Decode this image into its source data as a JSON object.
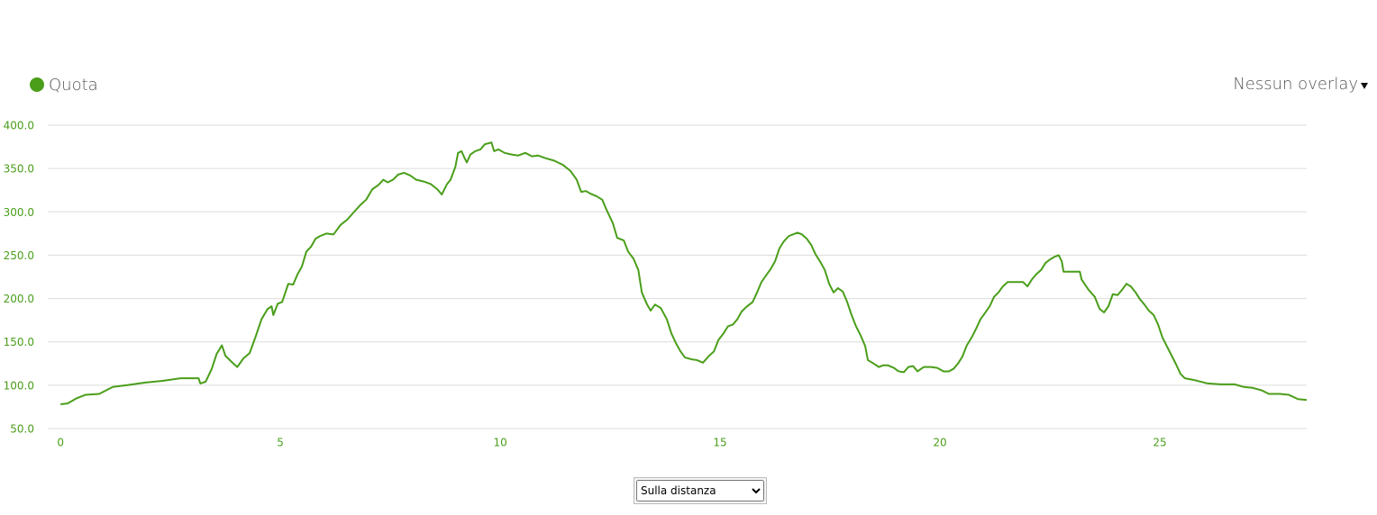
{
  "chart_data": {
    "type": "line",
    "x": [
      0,
      0.16,
      0.37,
      0.57,
      0.88,
      1.19,
      1.5,
      1.91,
      2.32,
      2.73,
      3.14,
      3.18,
      3.3,
      3.44,
      3.55,
      3.67,
      3.75,
      3.91,
      4.02,
      4.16,
      4.3,
      4.43,
      4.57,
      4.71,
      4.8,
      4.84,
      4.94,
      5.04,
      5.18,
      5.29,
      5.39,
      5.49,
      5.59,
      5.7,
      5.8,
      5.9,
      6.05,
      6.21,
      6.37,
      6.52,
      6.66,
      6.82,
      6.95,
      7.09,
      7.23,
      7.34,
      7.44,
      7.56,
      7.68,
      7.81,
      7.95,
      8.09,
      8.26,
      8.42,
      8.57,
      8.67,
      8.79,
      8.87,
      8.98,
      9.04,
      9.12,
      9.18,
      9.24,
      9.32,
      9.43,
      9.55,
      9.65,
      9.8,
      9.86,
      9.96,
      10.1,
      10.27,
      10.41,
      10.57,
      10.72,
      10.86,
      11.02,
      11.23,
      11.43,
      11.6,
      11.74,
      11.84,
      11.95,
      12.05,
      12.19,
      12.32,
      12.42,
      12.56,
      12.66,
      12.81,
      12.91,
      13.03,
      13.14,
      13.22,
      13.34,
      13.42,
      13.52,
      13.65,
      13.79,
      13.89,
      14,
      14.1,
      14.2,
      14.34,
      14.47,
      14.61,
      14.75,
      14.86,
      14.96,
      15.08,
      15.18,
      15.29,
      15.39,
      15.49,
      15.59,
      15.74,
      15.84,
      15.94,
      16.05,
      16.15,
      16.25,
      16.35,
      16.45,
      16.56,
      16.66,
      16.76,
      16.86,
      16.97,
      17.07,
      17.17,
      17.27,
      17.38,
      17.48,
      17.58,
      17.68,
      17.79,
      17.89,
      17.99,
      18.09,
      18.2,
      18.3,
      18.36,
      18.46,
      18.61,
      18.71,
      18.81,
      18.95,
      19.06,
      19.18,
      19.28,
      19.39,
      19.49,
      19.63,
      19.8,
      19.94,
      20.08,
      20.2,
      20.31,
      20.41,
      20.51,
      20.61,
      20.72,
      20.82,
      20.92,
      21.02,
      21.13,
      21.23,
      21.33,
      21.43,
      21.54,
      21.68,
      21.78,
      21.89,
      21.99,
      22.09,
      22.19,
      22.3,
      22.4,
      22.5,
      22.6,
      22.7,
      22.77,
      22.81,
      23.01,
      23.18,
      23.22,
      23.38,
      23.52,
      23.63,
      23.73,
      23.83,
      23.93,
      24.04,
      24.14,
      24.24,
      24.34,
      24.45,
      24.55,
      24.65,
      24.75,
      24.86,
      24.96,
      25.06,
      25.16,
      25.27,
      25.37,
      25.47,
      25.57,
      25.78,
      26.09,
      26.39,
      26.7,
      26.91,
      27.11,
      27.32,
      27.48,
      27.73,
      27.93,
      28.14,
      28.34
    ],
    "series": [
      {
        "name": "Quota",
        "color": "#4a9e1a",
        "values": [
          78,
          79,
          85,
          89,
          90,
          98,
          100,
          103,
          105,
          108,
          108,
          102,
          104,
          119,
          136,
          146,
          134,
          126,
          121,
          131,
          137,
          155,
          176,
          188,
          191,
          181,
          194,
          196,
          217,
          216,
          228,
          237,
          254,
          260,
          269,
          272,
          275,
          274,
          285,
          291,
          299,
          308,
          314,
          326,
          331,
          337,
          334,
          337,
          343,
          345,
          342,
          337,
          335,
          332,
          326,
          320,
          332,
          337,
          352,
          368,
          370,
          363,
          357,
          366,
          370,
          372,
          378,
          380,
          370,
          372,
          368,
          366,
          365,
          368,
          364,
          365,
          362,
          359,
          354,
          347,
          337,
          323,
          324,
          321,
          318,
          314,
          302,
          287,
          270,
          267,
          254,
          246,
          233,
          207,
          193,
          186,
          193,
          189,
          176,
          160,
          148,
          139,
          132,
          130,
          129,
          126,
          134,
          139,
          152,
          160,
          168,
          170,
          176,
          185,
          190,
          196,
          207,
          219,
          227,
          234,
          243,
          258,
          266,
          272,
          274,
          276,
          274,
          269,
          262,
          251,
          243,
          233,
          217,
          207,
          212,
          208,
          196,
          181,
          168,
          157,
          145,
          129,
          126,
          121,
          123,
          123,
          120,
          116,
          115,
          121,
          122,
          116,
          121,
          121,
          120,
          116,
          116,
          119,
          125,
          133,
          146,
          155,
          165,
          176,
          183,
          191,
          202,
          207,
          214,
          219,
          219,
          219,
          219,
          214,
          222,
          228,
          233,
          241,
          245,
          248,
          250,
          243,
          231,
          231,
          231,
          222,
          210,
          202,
          188,
          184,
          191,
          205,
          204,
          210,
          217,
          214,
          207,
          199,
          193,
          186,
          181,
          170,
          155,
          145,
          134,
          124,
          113,
          108,
          106,
          102,
          101,
          101,
          98,
          97,
          94,
          90,
          90,
          89,
          84,
          83
        ]
      }
    ],
    "xlim": [
      -0.29,
      28.34
    ],
    "ylim": [
      50,
      400
    ],
    "xticks": [
      0,
      5,
      10,
      15,
      20,
      25
    ],
    "yticks": [
      {
        "value": 50,
        "label": "50.0"
      },
      {
        "value": 100,
        "label": "100.0"
      },
      {
        "value": 150,
        "label": "150.0"
      },
      {
        "value": 200,
        "label": "200.0"
      },
      {
        "value": 250,
        "label": "250.0"
      },
      {
        "value": 300,
        "label": "300.0"
      },
      {
        "value": 350,
        "label": "350.0"
      },
      {
        "value": 400,
        "label": "400.0"
      }
    ],
    "grid": true
  },
  "controls": {
    "overlay": "Nessun overlay",
    "mode": "Sulla distanza"
  }
}
